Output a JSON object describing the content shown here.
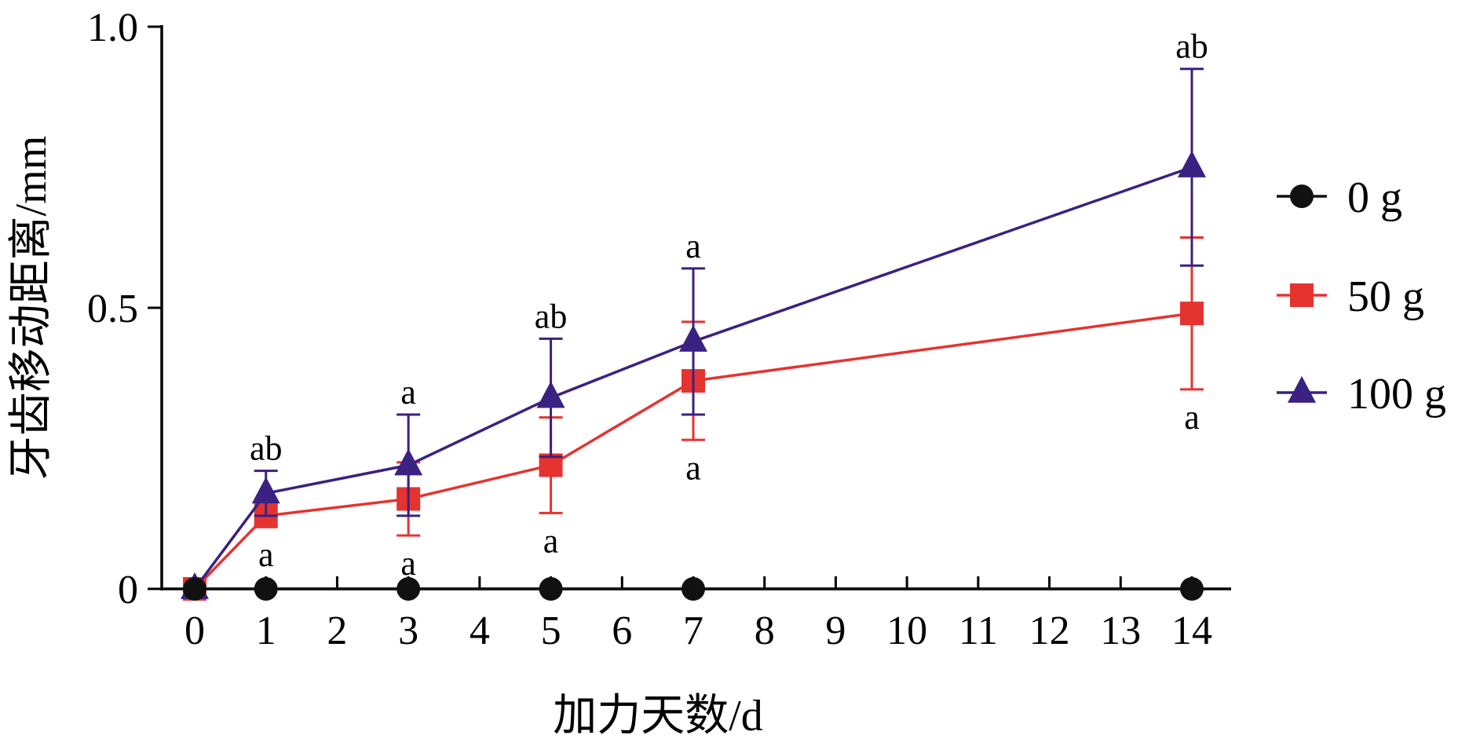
{
  "chart_data": {
    "type": "line",
    "xlabel": "加力天数/d",
    "ylabel": "牙齿移动距离/mm",
    "x_ticks": [
      "0",
      "1",
      "2",
      "3",
      "4",
      "5",
      "6",
      "7",
      "8",
      "9",
      "10",
      "11",
      "12",
      "13",
      "14"
    ],
    "y_ticks": [
      "0",
      "0.5",
      "1.0"
    ],
    "xlim": [
      0,
      14
    ],
    "ylim": [
      0,
      1.0
    ],
    "legend_position": "right",
    "grid": false,
    "series": [
      {
        "name": "0 g",
        "color": "#111111",
        "marker": "circle",
        "points": [
          {
            "x": 0,
            "y": 0
          },
          {
            "x": 1,
            "y": 0
          },
          {
            "x": 3,
            "y": 0
          },
          {
            "x": 5,
            "y": 0
          },
          {
            "x": 7,
            "y": 0
          },
          {
            "x": 14,
            "y": 0
          }
        ]
      },
      {
        "name": "50 g",
        "color": "#e53330",
        "marker": "square",
        "points": [
          {
            "x": 0,
            "y": 0,
            "err": 0
          },
          {
            "x": 1,
            "y": 0.13,
            "err": 0.02
          },
          {
            "x": 3,
            "y": 0.16,
            "err": 0.065
          },
          {
            "x": 5,
            "y": 0.22,
            "err": 0.085
          },
          {
            "x": 7,
            "y": 0.37,
            "err": 0.105
          },
          {
            "x": 14,
            "y": 0.49,
            "err": 0.135
          }
        ]
      },
      {
        "name": "100 g",
        "color": "#3b2182",
        "marker": "triangle",
        "points": [
          {
            "x": 0,
            "y": 0,
            "err": 0
          },
          {
            "x": 1,
            "y": 0.17,
            "err": 0.04
          },
          {
            "x": 3,
            "y": 0.22,
            "err": 0.09
          },
          {
            "x": 5,
            "y": 0.34,
            "err": 0.105
          },
          {
            "x": 7,
            "y": 0.44,
            "err": 0.13
          },
          {
            "x": 14,
            "y": 0.75,
            "err": 0.175
          }
        ]
      }
    ],
    "annotations": [
      {
        "x": 1,
        "y": 0.21,
        "text": "ab",
        "side": "above"
      },
      {
        "x": 1,
        "y": 0.11,
        "text": "a",
        "side": "below"
      },
      {
        "x": 3,
        "y": 0.31,
        "text": "a",
        "side": "above"
      },
      {
        "x": 3,
        "y": 0.095,
        "text": "a",
        "side": "below"
      },
      {
        "x": 5,
        "y": 0.445,
        "text": "ab",
        "side": "above"
      },
      {
        "x": 5,
        "y": 0.135,
        "text": "a",
        "side": "below"
      },
      {
        "x": 7,
        "y": 0.57,
        "text": "a",
        "side": "above"
      },
      {
        "x": 7,
        "y": 0.265,
        "text": "a",
        "side": "below"
      },
      {
        "x": 14,
        "y": 0.925,
        "text": "ab",
        "side": "above"
      },
      {
        "x": 14,
        "y": 0.355,
        "text": "a",
        "side": "below"
      }
    ]
  }
}
